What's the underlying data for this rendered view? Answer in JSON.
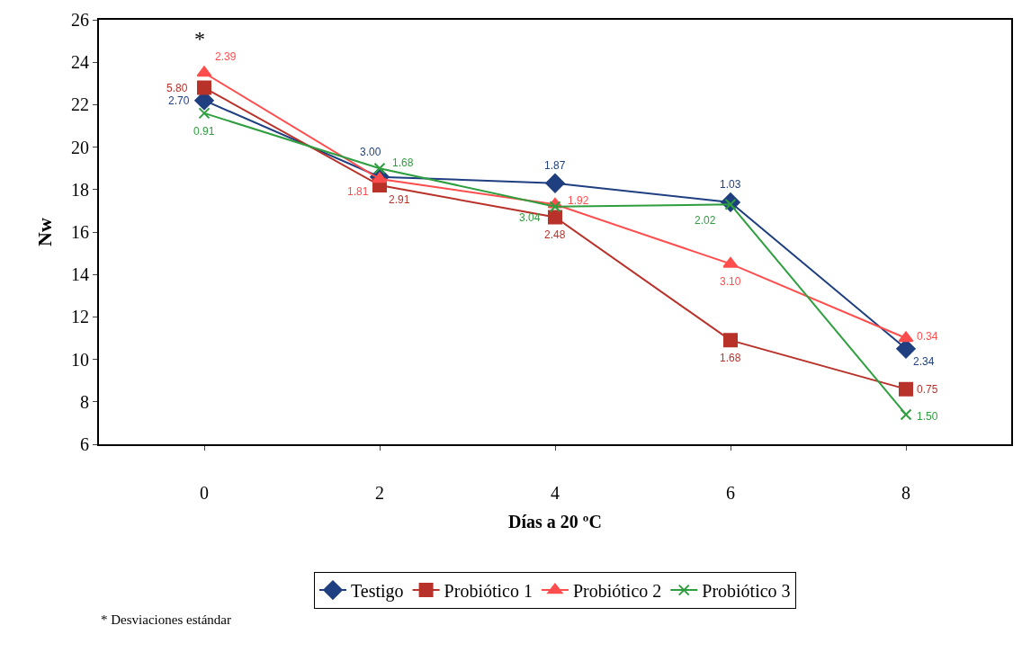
{
  "chart_data": {
    "type": "line",
    "xlabel": "Días a 20 ºC",
    "ylabel": "Nw",
    "categories": [
      "0",
      "2",
      "4",
      "6",
      "8"
    ],
    "ylim": [
      6,
      26
    ],
    "yticks": [
      6,
      8,
      10,
      12,
      14,
      16,
      18,
      20,
      22,
      24,
      26
    ],
    "legend": "bottom",
    "series": [
      {
        "name": "Testigo",
        "color": "#1f3f80",
        "marker": "diamond",
        "values": [
          22.2,
          18.6,
          18.3,
          17.4,
          10.5
        ]
      },
      {
        "name": "Probiótico 1",
        "color": "#b8322a",
        "marker": "square",
        "values": [
          22.8,
          18.2,
          16.7,
          10.9,
          8.6
        ]
      },
      {
        "name": "Probiótico 2",
        "color": "#ff4d4d",
        "marker": "triangle",
        "values": [
          23.5,
          18.5,
          17.3,
          14.5,
          11.0
        ]
      },
      {
        "name": "Probiótico 3",
        "color": "#2e9e3e",
        "marker": "cross",
        "values": [
          21.6,
          19.0,
          17.2,
          17.3,
          7.4
        ]
      }
    ],
    "annotations": [
      "*",
      "* Desviaciones estándar",
      {
        "text": "2.70",
        "x": "0",
        "y": 22.2
      },
      {
        "text": "3.00",
        "x": "2",
        "y": 18.6
      },
      {
        "text": "1.87",
        "x": "4",
        "y": 18.3
      },
      {
        "text": "1.03",
        "x": "6",
        "y": 17.4
      },
      {
        "text": "2.34",
        "x": "8",
        "y": 10.5
      },
      {
        "text": "5.80",
        "x": "0",
        "y": 22.8
      },
      {
        "text": "2.91",
        "x": "2",
        "y": 18.2
      },
      {
        "text": "2.48",
        "x": "4",
        "y": 16.7
      },
      {
        "text": "1.68",
        "x": "6",
        "y": 10.9
      },
      {
        "text": "0.75",
        "x": "8",
        "y": 8.6
      },
      {
        "text": "2.39",
        "x": "0",
        "y": 23.5
      },
      {
        "text": "1.81",
        "x": "2",
        "y": 18.5
      },
      {
        "text": "1.92",
        "x": "4",
        "y": 17.3
      },
      {
        "text": "3.10",
        "x": "6",
        "y": 14.5
      },
      {
        "text": "0.34",
        "x": "8",
        "y": 11.0
      },
      {
        "text": "0.91",
        "x": "0",
        "y": 21.6
      },
      {
        "text": "1.68",
        "x": "2",
        "y": 19.0
      },
      {
        "text": "3.04",
        "x": "4",
        "y": 17.2
      },
      {
        "text": "2.02",
        "x": "6",
        "y": 17.3
      },
      {
        "text": "1.50",
        "x": "8",
        "y": 7.4
      }
    ]
  }
}
